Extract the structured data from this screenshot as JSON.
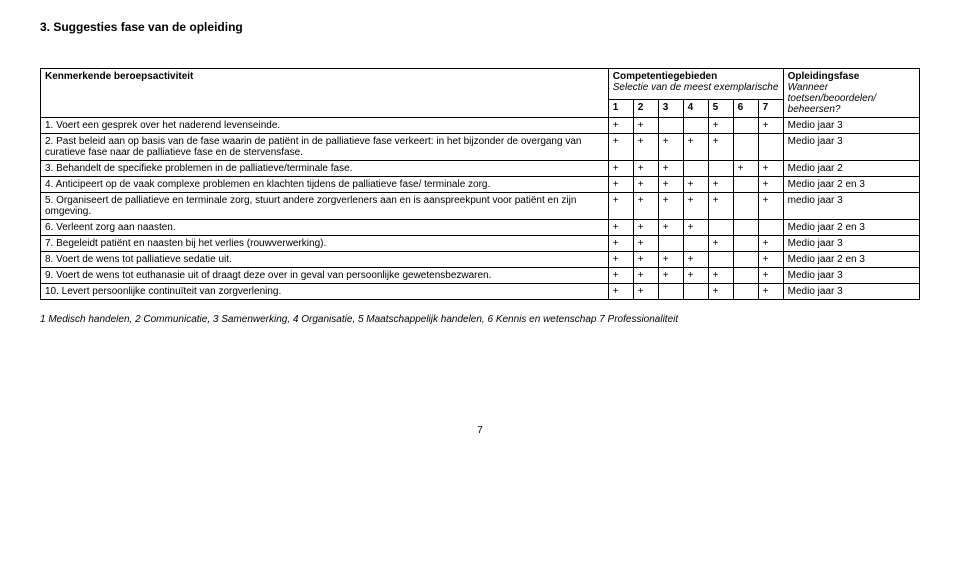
{
  "section_title": "3. Suggesties fase van de opleiding",
  "header": {
    "col1": "Kenmerkende beroepsactiviteit",
    "col2_title": "Competentiegebieden",
    "col2_sub": "Selectie van de meest exemplarische",
    "col3_title": "Opleidingsfase",
    "col3_sub": "Wanneer toetsen/beoordelen/ beheersen?",
    "nums": [
      "1",
      "2",
      "3",
      "4",
      "5",
      "6",
      "7"
    ]
  },
  "rows": [
    {
      "n": "1.",
      "text": "Voert een gesprek over het naderend levenseinde.",
      "marks": [
        "+",
        "+",
        "",
        "",
        "+",
        "",
        "+"
      ],
      "phase": "Medio jaar 3"
    },
    {
      "n": "2.",
      "text": "Past beleid aan op basis van de fase waarin de patiënt in de palliatieve fase verkeert: in het bijzonder de overgang van curatieve fase naar de palliatieve fase en de stervensfase.",
      "marks": [
        "+",
        "+",
        "+",
        "+",
        "+",
        "",
        ""
      ],
      "phase": "Medio jaar 3"
    },
    {
      "n": "3.",
      "text": "Behandelt de specifieke problemen in de palliatieve/terminale fase.",
      "marks": [
        "+",
        "+",
        "+",
        "",
        "",
        "+",
        "+"
      ],
      "phase": "Medio jaar 2"
    },
    {
      "n": "4.",
      "text": "Anticipeert op de vaak complexe problemen en klachten tijdens de palliatieve fase/ terminale zorg.",
      "marks": [
        "+",
        "+",
        "+",
        "+",
        "+",
        "",
        "+"
      ],
      "phase": "Medio jaar 2 en 3"
    },
    {
      "n": "5.",
      "text": "Organiseert de palliatieve en terminale zorg, stuurt andere zorgverleners aan en is aanspreekpunt voor patiënt en zijn omgeving.",
      "marks": [
        "+",
        "+",
        "+",
        "+",
        "+",
        "",
        "+"
      ],
      "phase": "medio jaar 3"
    },
    {
      "n": "6.",
      "text": "Verleent zorg aan naasten.",
      "marks": [
        "+",
        "+",
        "+",
        "+",
        "",
        "",
        ""
      ],
      "phase": "Medio jaar 2 en 3"
    },
    {
      "n": "7.",
      "text": "Begeleidt patiënt en naasten bij het verlies (rouwverwerking).",
      "marks": [
        "+",
        "+",
        "",
        "",
        "+",
        "",
        "+"
      ],
      "phase": "Medio jaar 3"
    },
    {
      "n": "8.",
      "text": "Voert de wens tot palliatieve sedatie uit.",
      "marks": [
        "+",
        "+",
        "+",
        "+",
        "",
        "",
        "+"
      ],
      "phase": "Medio jaar 2 en 3"
    },
    {
      "n": "9.",
      "text": "Voert de wens tot euthanasie uit of draagt deze over in geval van persoonlijke gewetensbezwaren.",
      "marks": [
        "+",
        "+",
        "+",
        "+",
        "+",
        "",
        "+"
      ],
      "phase": "Medio jaar 3"
    },
    {
      "n": "10.",
      "text": "Levert persoonlijke continuïteit van zorgverlening.",
      "marks": [
        "+",
        "+",
        "",
        "",
        "+",
        "",
        "+"
      ],
      "phase": "Medio jaar 3"
    }
  ],
  "legend": "1 Medisch handelen, 2 Communicatie, 3 Samenwerking, 4 Organisatie, 5 Maatschappelijk handelen, 6 Kennis en wetenschap 7 Professionaliteit",
  "page_number": "7"
}
